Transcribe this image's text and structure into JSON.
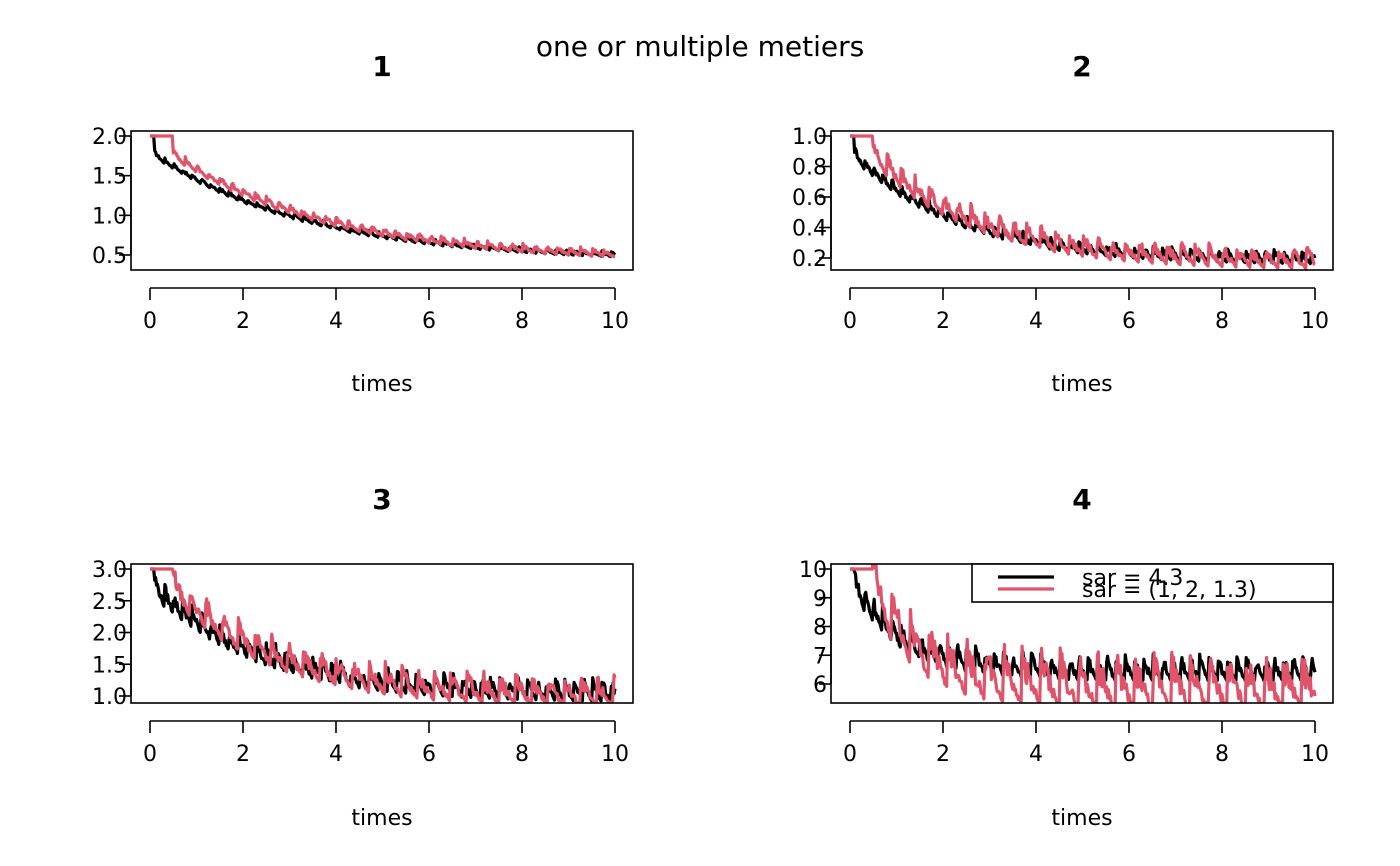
{
  "title": "one or multiple metiers",
  "colors": {
    "series1": "#000000",
    "series2": "#DF536B",
    "axis": "#000000",
    "background": "#ffffff"
  },
  "legend": {
    "placement": "top-right of panel 4",
    "entries": [
      {
        "label": "sar = 4.3",
        "color": "#000000"
      },
      {
        "label": "sar = (1, 2, 1.3)",
        "color": "#DF536B"
      }
    ]
  },
  "chart_data": [
    {
      "type": "line",
      "title": "1",
      "xlabel": "times",
      "ylabel": "",
      "xlim": [
        0,
        10
      ],
      "ylim": [
        0.5,
        2.0
      ],
      "xticks": [
        "0",
        "2",
        "4",
        "6",
        "8",
        "10"
      ],
      "yticks": [
        "0.5",
        "1.0",
        "1.5",
        "2.0"
      ],
      "xtick_values": [
        0,
        2,
        4,
        6,
        8,
        10
      ],
      "ytick_values": [
        0.5,
        1.0,
        1.5,
        2.0
      ],
      "series": [
        {
          "start": 2.0,
          "k": 0.3,
          "period": 0.2,
          "delay": 0.1,
          "floor": 0.44,
          "amp": 0.06
        },
        {
          "start": 2.0,
          "k": 0.3,
          "period": 0.25,
          "delay": 0.5,
          "floor": 0.44,
          "amp": 0.09
        }
      ]
    },
    {
      "type": "line",
      "title": "2",
      "xlabel": "times",
      "ylabel": "",
      "xlim": [
        0,
        10
      ],
      "ylim": [
        0.2,
        1.0
      ],
      "xticks": [
        "0",
        "2",
        "4",
        "6",
        "8",
        "10"
      ],
      "yticks": [
        "0.2",
        "0.4",
        "0.6",
        "0.8",
        "1.0"
      ],
      "xtick_values": [
        0,
        2,
        4,
        6,
        8,
        10
      ],
      "ytick_values": [
        0.2,
        0.4,
        0.6,
        0.8,
        1.0
      ],
      "series": [
        {
          "start": 1.0,
          "k": 0.45,
          "period": 0.2,
          "delay": 0.1,
          "floor": 0.19,
          "amp": 0.07
        },
        {
          "start": 1.0,
          "k": 0.45,
          "period": 0.3,
          "delay": 0.5,
          "floor": 0.18,
          "amp": 0.12
        }
      ]
    },
    {
      "type": "line",
      "title": "3",
      "xlabel": "times",
      "ylabel": "",
      "xlim": [
        0,
        10
      ],
      "ylim": [
        1.0,
        3.0
      ],
      "xticks": [
        "0",
        "2",
        "4",
        "6",
        "8",
        "10"
      ],
      "yticks": [
        "1.0",
        "1.5",
        "2.0",
        "2.5",
        "3.0"
      ],
      "xtick_values": [
        0,
        2,
        4,
        6,
        8,
        10
      ],
      "ytick_values": [
        1.0,
        1.5,
        2.0,
        2.5,
        3.0
      ],
      "series": [
        {
          "start": 3.0,
          "k": 0.45,
          "period": 0.2,
          "delay": 0.1,
          "floor": 1.05,
          "amp": 0.3
        },
        {
          "start": 3.0,
          "k": 0.45,
          "period": 0.35,
          "delay": 0.5,
          "floor": 1.0,
          "amp": 0.4
        }
      ]
    },
    {
      "type": "line",
      "title": "4",
      "xlabel": "times",
      "ylabel": "",
      "xlim": [
        0,
        10
      ],
      "ylim": [
        6,
        10
      ],
      "xticks": [
        "0",
        "2",
        "4",
        "6",
        "8",
        "10"
      ],
      "yticks": [
        "6",
        "7",
        "8",
        "9",
        "10"
      ],
      "xtick_values": [
        0,
        2,
        4,
        6,
        8,
        10
      ],
      "ytick_values": [
        6,
        7,
        8,
        9,
        10
      ],
      "series": [
        {
          "start": 10.0,
          "k": 1.0,
          "period": 0.2,
          "delay": 0.1,
          "floor": 6.5,
          "amp": 0.75
        },
        {
          "start": 10.0,
          "k": 1.0,
          "period": 0.4,
          "delay": 0.5,
          "floor": 5.9,
          "amp": 1.6
        }
      ]
    }
  ]
}
